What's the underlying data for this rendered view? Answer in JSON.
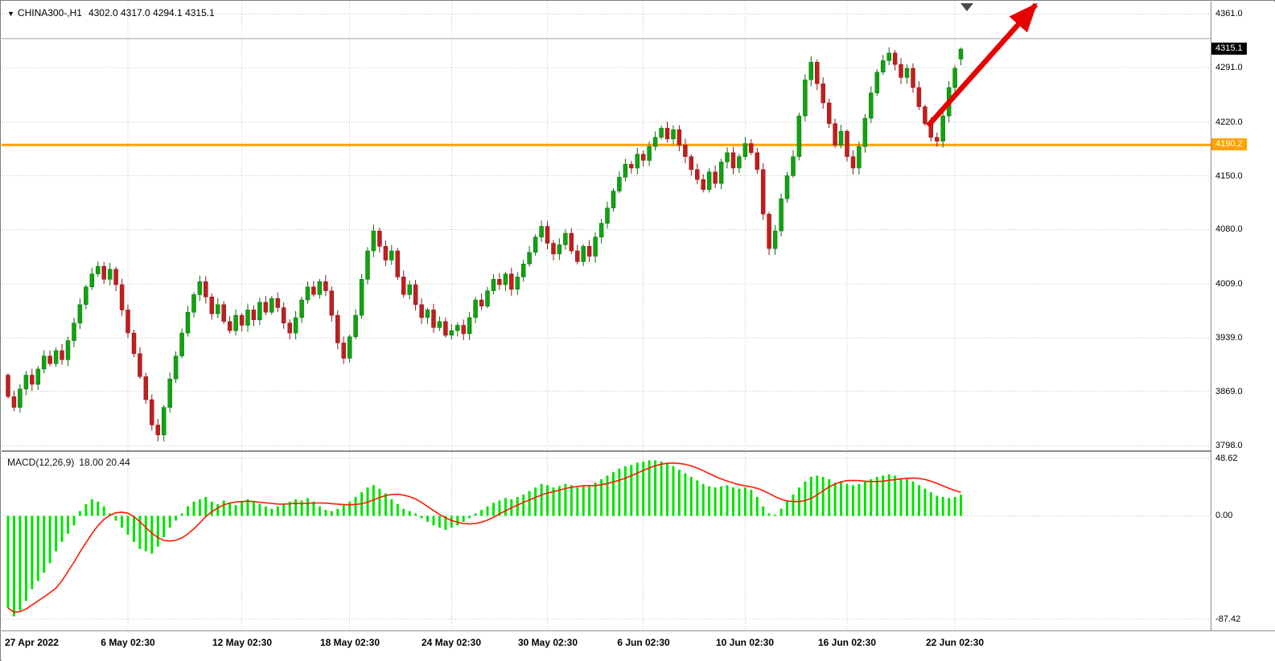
{
  "header": {
    "dropdown_icon": "▼",
    "symbol": "CHINA300-,H1",
    "ohlc": "4302.0 4317.0 4294.1 4315.1"
  },
  "indicator": {
    "label": "MACD(12,26,9)",
    "values": "18.00 20.44"
  },
  "colors": {
    "up": "#10a310",
    "up_border": "#0a6e0a",
    "down": "#c01f1f",
    "down_border": "#8f1616",
    "hist": "#00e300",
    "signal": "#ff1a00",
    "level_line": "#ffa200",
    "gray_line": "#a0a0a0",
    "grid": "#c4c4c4",
    "tag_current_bg": "#000000",
    "tag_level_bg": "#ffa200",
    "arrow": "#e60202",
    "marker": "#4a4a4a"
  },
  "chart_data": [
    {
      "type": "candlestick",
      "title": "CHINA300-,H1",
      "ylim": [
        3792,
        4377
      ],
      "y_ticks": [
        4361.0,
        4291.0,
        4220.0,
        4150.0,
        4080.0,
        4009.0,
        3939.0,
        3869.0,
        3798.0
      ],
      "x_ticks": [
        {
          "label": "27 Apr 2022",
          "i": 0
        },
        {
          "label": "6 May 02:30",
          "i": 20
        },
        {
          "label": "12 May 02:30",
          "i": 39
        },
        {
          "label": "18 May 02:30",
          "i": 57
        },
        {
          "label": "24 May 02:30",
          "i": 74
        },
        {
          "label": "30 May 02:30",
          "i": 90
        },
        {
          "label": "6 Jun 02:30",
          "i": 106
        },
        {
          "label": "10 Jun 02:30",
          "i": 123
        },
        {
          "label": "16 Jun 02:30",
          "i": 140
        },
        {
          "label": "22 Jun 02:30",
          "i": 158
        }
      ],
      "first_open": 3890,
      "closes": [
        3862,
        3848,
        3872,
        3890,
        3878,
        3898,
        3915,
        3905,
        3922,
        3910,
        3935,
        3958,
        3982,
        4005,
        4022,
        4032,
        4015,
        4028,
        4008,
        3975,
        3945,
        3918,
        3888,
        3858,
        3825,
        3812,
        3848,
        3885,
        3915,
        3945,
        3972,
        3995,
        4012,
        3992,
        3970,
        3982,
        3960,
        3948,
        3968,
        3955,
        3975,
        3962,
        3985,
        3972,
        3990,
        3978,
        3958,
        3945,
        3965,
        3988,
        4005,
        3995,
        4012,
        4000,
        3968,
        3932,
        3912,
        3940,
        3968,
        4015,
        4052,
        4078,
        4058,
        4040,
        4052,
        4018,
        3995,
        4008,
        3982,
        3965,
        3975,
        3952,
        3960,
        3942,
        3948,
        3955,
        3944,
        3965,
        3988,
        3980,
        4000,
        4015,
        4008,
        4022,
        4002,
        4018,
        4035,
        4050,
        4070,
        4084,
        4062,
        4048,
        4060,
        4075,
        4052,
        4038,
        4058,
        4045,
        4070,
        4088,
        4108,
        4130,
        4148,
        4165,
        4160,
        4178,
        4170,
        4188,
        4200,
        4212,
        4198,
        4210,
        4190,
        4175,
        4158,
        4145,
        4132,
        4155,
        4140,
        4168,
        4180,
        4160,
        4175,
        4192,
        4180,
        4158,
        4100,
        4055,
        4078,
        4120,
        4150,
        4175,
        4228,
        4275,
        4298,
        4270,
        4245,
        4218,
        4190,
        4208,
        4175,
        4160,
        4188,
        4225,
        4258,
        4285,
        4300,
        4310,
        4295,
        4278,
        4290,
        4265,
        4240,
        4218,
        4200,
        4195,
        4228,
        4265,
        4290,
        4315
      ],
      "current": {
        "open": 4302.0,
        "high": 4317.0,
        "low": 4294.1,
        "close": 4315.1
      },
      "levels": {
        "orange_line": 4190.2,
        "gray_line": 4329
      },
      "annotations": [
        {
          "type": "arrow",
          "from": {
            "i": 153.5,
            "p": 4215
          },
          "to": {
            "i": 171.5,
            "p": 4373
          }
        }
      ],
      "shift_marker_index": 160
    },
    {
      "type": "bar+line",
      "title": "MACD(12,26,9)",
      "main_value": "18.00",
      "signal_value": "20.44",
      "ylim": [
        -87.42,
        48.62
      ],
      "y_ticks": [
        48.62,
        0.0,
        -87.42
      ],
      "signal_period": 9,
      "histogram": [
        -78,
        -85,
        -80,
        -72,
        -62,
        -55,
        -48,
        -40,
        -30,
        -22,
        -15,
        -8,
        4,
        10,
        14,
        12,
        8,
        2,
        -4,
        -10,
        -16,
        -22,
        -28,
        -30,
        -32,
        -26,
        -18,
        -10,
        -4,
        2,
        8,
        12,
        14,
        16,
        12,
        10,
        13,
        11,
        9,
        12,
        14,
        12,
        10,
        8,
        6,
        8,
        10,
        12,
        14,
        13,
        15,
        12,
        8,
        5,
        4,
        6,
        9,
        12,
        16,
        20,
        24,
        26,
        23,
        19,
        14,
        10,
        6,
        4,
        2,
        -2,
        -5,
        -8,
        -10,
        -12,
        -10,
        -8,
        -5,
        -2,
        2,
        5,
        8,
        11,
        13,
        15,
        14,
        16,
        18,
        21,
        24,
        27,
        26,
        24,
        25,
        27,
        26,
        24,
        26,
        25,
        28,
        31,
        34,
        37,
        40,
        42,
        43,
        45,
        46,
        47,
        47,
        46,
        44,
        42,
        39,
        36,
        33,
        30,
        27,
        25,
        24,
        25,
        26,
        24,
        23,
        24,
        22,
        16,
        8,
        2,
        1,
        6,
        12,
        18,
        24,
        29,
        33,
        34,
        33,
        31,
        28,
        29,
        27,
        26,
        27,
        29,
        31,
        33,
        34,
        35,
        34,
        32,
        31,
        29,
        26,
        23,
        20,
        17,
        16,
        15,
        16,
        18
      ]
    }
  ]
}
